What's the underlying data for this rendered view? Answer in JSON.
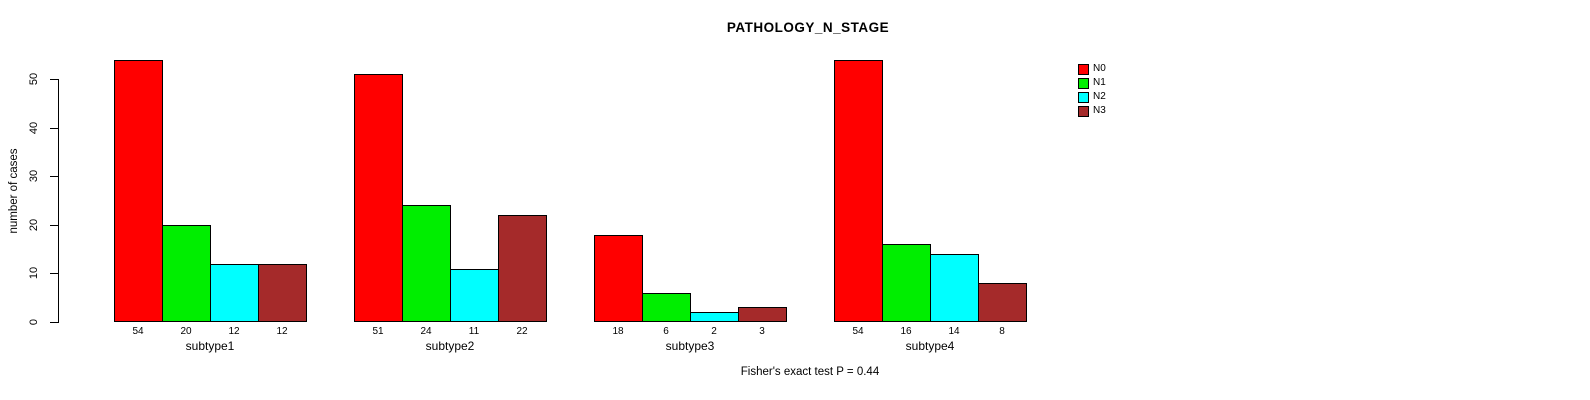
{
  "chart_data": {
    "type": "bar",
    "title": "PATHOLOGY_N_STAGE",
    "categories": [
      "subtype1",
      "subtype2",
      "subtype3",
      "subtype4"
    ],
    "series": [
      {
        "name": "N0",
        "color": "#FF0000",
        "values": [
          54,
          51,
          18,
          54
        ]
      },
      {
        "name": "N1",
        "color": "#00EE00",
        "values": [
          20,
          24,
          6,
          16
        ]
      },
      {
        "name": "N2",
        "color": "#00FFFF",
        "values": [
          12,
          11,
          2,
          14
        ]
      },
      {
        "name": "N3",
        "color": "#A52A2A",
        "values": [
          12,
          22,
          3,
          8
        ]
      }
    ],
    "xlabel": "",
    "ylabel": "number of cases",
    "ylim": [
      0,
      50
    ],
    "yticks": [
      0,
      10,
      20,
      30,
      40,
      50
    ],
    "bar_value_labels": true,
    "legend_position": "top-right",
    "legend_entries": [
      "N0",
      "N1",
      "N2",
      "N3"
    ],
    "grid": false,
    "bar_border_color": "#000000",
    "annotation": "Fisher's exact test P = 0.44"
  }
}
